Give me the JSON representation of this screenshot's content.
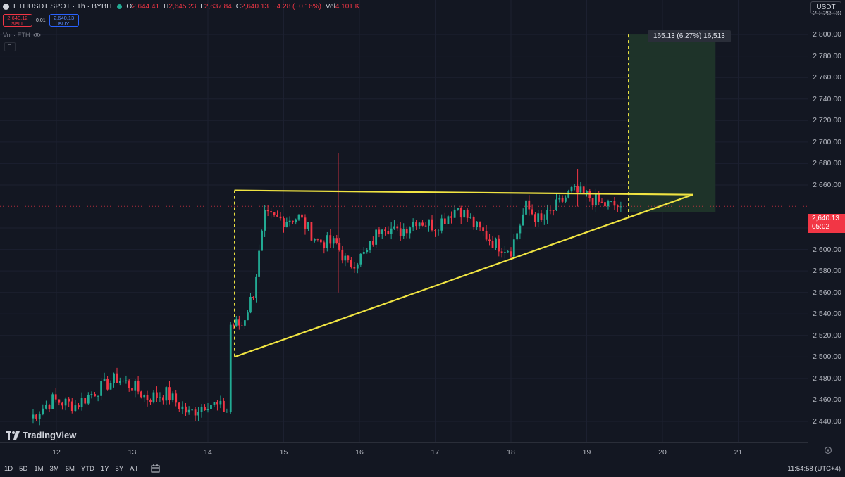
{
  "header": {
    "symbol": "ETHUSDT SPOT · 1h · BYBIT",
    "ohlc": [
      {
        "key": "O",
        "value": "2,644.41"
      },
      {
        "key": "H",
        "value": "2,645.23"
      },
      {
        "key": "L",
        "value": "2,637.84"
      },
      {
        "key": "C",
        "value": "2,640.13"
      }
    ],
    "change": "−4.28 (−0.16%)",
    "volume_key": "Vol",
    "volume_value": "4.101 K"
  },
  "trade": {
    "sell_price": "2,640.12",
    "sell_label": "SELL",
    "spread": "0.01",
    "buy_price": "2,640.13",
    "buy_label": "BUY"
  },
  "volume_legend": "Vol · ETH",
  "collapse_glyph": "⌃",
  "currency": "USDT",
  "measure_label": "165.13 (6.27%) 16,513",
  "last_price": {
    "price": "2,640.13",
    "countdown": "05:02"
  },
  "price_axis": [
    "2,820.00",
    "2,800.00",
    "2,780.00",
    "2,760.00",
    "2,740.00",
    "2,720.00",
    "2,700.00",
    "2,680.00",
    "2,660.00",
    "2,620.00",
    "2,600.00",
    "2,580.00",
    "2,560.00",
    "2,540.00",
    "2,520.00",
    "2,500.00",
    "2,480.00",
    "2,460.00",
    "2,440.00"
  ],
  "time_axis": [
    "12",
    "13",
    "14",
    "15",
    "16",
    "17",
    "18",
    "19",
    "20",
    "21"
  ],
  "brand": "TradingView",
  "ranges": [
    "1D",
    "5D",
    "1M",
    "3M",
    "6M",
    "YTD",
    "1Y",
    "5Y",
    "All"
  ],
  "clock": "11:54:58 (UTC+4)",
  "colors": {
    "up": "#22ab94",
    "down": "#f23645",
    "trendline": "#f0e442",
    "target_zone": "#1e3329",
    "background": "#131722"
  },
  "chart_data": {
    "type": "candlestick",
    "ylim": [
      2430,
      2830
    ],
    "x_range_days": [
      11.4,
      21.4
    ],
    "series_anchors": [
      {
        "x": 11.65,
        "close": 2443
      },
      {
        "x": 11.95,
        "close": 2460
      },
      {
        "x": 12.25,
        "close": 2455
      },
      {
        "x": 12.55,
        "close": 2470
      },
      {
        "x": 12.8,
        "close": 2480
      },
      {
        "x": 13.0,
        "close": 2473
      },
      {
        "x": 13.2,
        "close": 2462
      },
      {
        "x": 13.45,
        "close": 2466
      },
      {
        "x": 13.75,
        "close": 2447
      },
      {
        "x": 14.0,
        "close": 2458
      },
      {
        "x": 14.25,
        "close": 2450
      },
      {
        "x": 14.3,
        "close": 2530
      },
      {
        "x": 14.45,
        "close": 2530
      },
      {
        "x": 14.6,
        "close": 2560
      },
      {
        "x": 14.75,
        "close": 2630
      },
      {
        "x": 15.0,
        "close": 2628
      },
      {
        "x": 15.2,
        "close": 2630
      },
      {
        "x": 15.45,
        "close": 2608
      },
      {
        "x": 15.7,
        "close": 2605
      },
      {
        "x": 15.85,
        "close": 2585
      },
      {
        "x": 16.1,
        "close": 2597
      },
      {
        "x": 16.3,
        "close": 2625
      },
      {
        "x": 16.5,
        "close": 2615
      },
      {
        "x": 16.75,
        "close": 2628
      },
      {
        "x": 17.0,
        "close": 2622
      },
      {
        "x": 17.3,
        "close": 2640
      },
      {
        "x": 17.55,
        "close": 2620
      },
      {
        "x": 17.8,
        "close": 2605
      },
      {
        "x": 18.0,
        "close": 2600
      },
      {
        "x": 18.2,
        "close": 2640
      },
      {
        "x": 18.4,
        "close": 2625
      },
      {
        "x": 18.6,
        "close": 2640
      },
      {
        "x": 18.8,
        "close": 2654
      },
      {
        "x": 19.0,
        "close": 2650
      },
      {
        "x": 19.2,
        "close": 2642
      },
      {
        "x": 19.45,
        "close": 2640.13
      }
    ],
    "spikes": [
      {
        "x": 15.72,
        "high": 2690,
        "low": 2560
      },
      {
        "x": 18.88,
        "high": 2675,
        "low": 2640
      }
    ],
    "trendlines": [
      {
        "from": {
          "x": 14.35,
          "y": 2655
        },
        "to": {
          "x": 20.4,
          "y": 2651
        }
      },
      {
        "from": {
          "x": 14.35,
          "y": 2500
        },
        "to": {
          "x": 20.4,
          "y": 2651
        }
      }
    ],
    "vertical_dashed": [
      {
        "x": 14.35,
        "from": 2500,
        "to": 2655
      },
      {
        "x": 19.55,
        "from": 2630,
        "to": 2800
      }
    ],
    "target_zone": {
      "x_from": 19.55,
      "x_to": 20.7,
      "y_from": 2635,
      "y_to": 2800
    }
  }
}
